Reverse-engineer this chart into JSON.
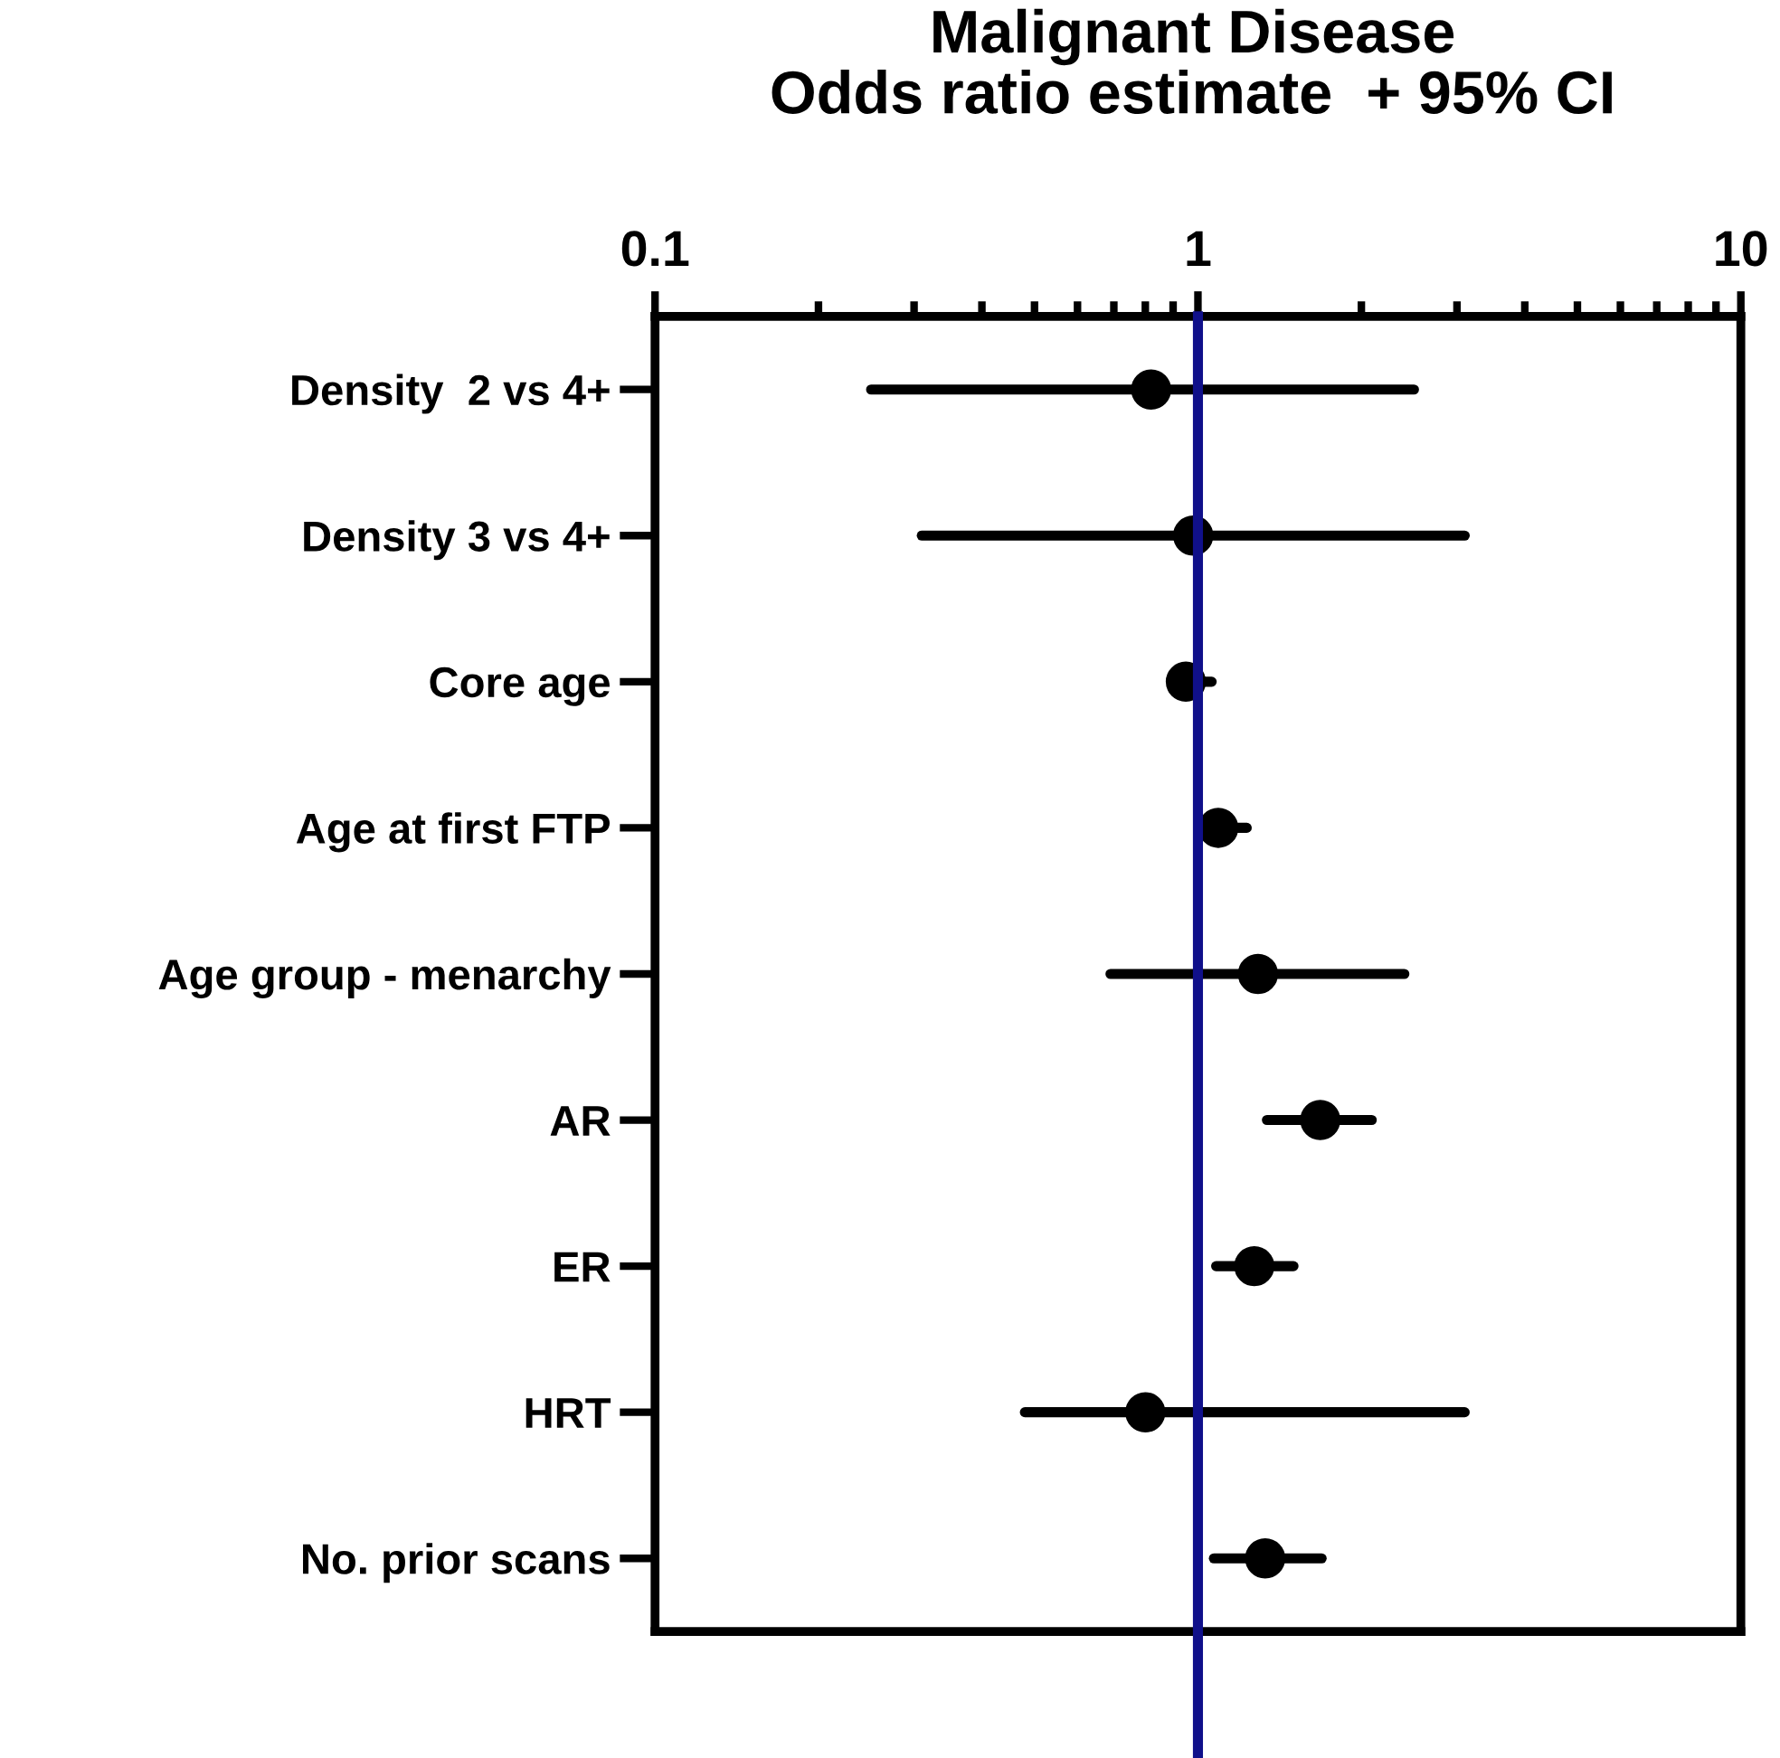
{
  "chart_data": {
    "type": "scatter",
    "orientation": "horizontal",
    "title": "Malignant Disease\nOdds ratio estimate  + 95% CI",
    "categories": [
      "Density  2 vs 4+",
      "Density 3 vs 4+",
      "Core age",
      "Age at first FTP",
      "Age group - menarchy",
      "AR",
      "ER",
      "HRT",
      "No. prior scans"
    ],
    "values": [
      0.82,
      0.98,
      0.95,
      1.09,
      1.29,
      1.68,
      1.27,
      0.8,
      1.33
    ],
    "errors": [
      [
        0.25,
        2.5
      ],
      [
        0.31,
        3.1
      ],
      [
        0.95,
        1.06
      ],
      [
        1.09,
        1.23
      ],
      [
        0.69,
        2.4
      ],
      [
        1.34,
        2.09
      ],
      [
        1.08,
        1.5
      ],
      [
        0.48,
        3.1
      ],
      [
        1.07,
        1.69
      ]
    ],
    "color": "#000000",
    "marker": "circle",
    "log": "x",
    "grid": false,
    "xlim": [
      0.1,
      10
    ],
    "xticks": [
      0.1,
      1,
      10
    ],
    "ref_lines": [
      {
        "axis": "x",
        "value": 1,
        "color": "#10108a",
        "line_style": "solid"
      }
    ]
  }
}
